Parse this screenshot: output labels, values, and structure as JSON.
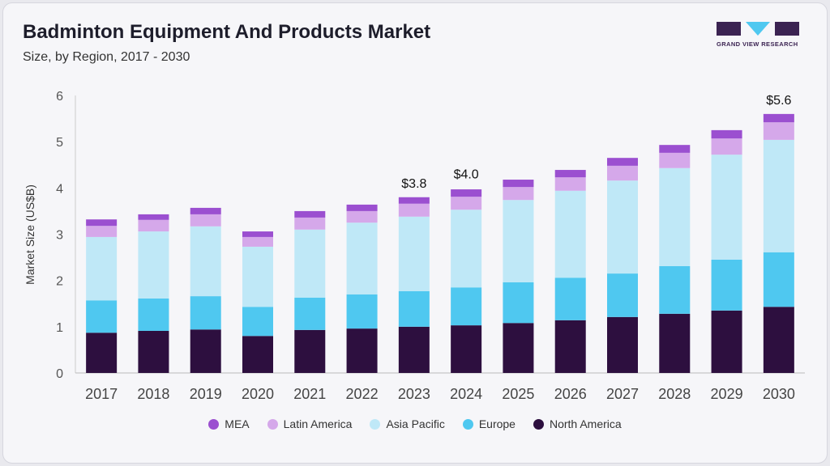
{
  "header": {
    "title": "Badminton Equipment And Products Market",
    "subtitle": "Size, by Region, 2017 - 2030",
    "logo_text": "GRAND VIEW RESEARCH"
  },
  "chart_data": {
    "type": "bar",
    "stacked": true,
    "title": "Badminton Equipment And Products Market",
    "subtitle": "Size, by Region, 2017 - 2030",
    "xlabel": "",
    "ylabel": "Market Size (US$B)",
    "ylim": [
      0,
      6
    ],
    "yticks": [
      "0",
      "1",
      "2",
      "3",
      "4",
      "5",
      "6"
    ],
    "grid": false,
    "legend_placement": "bottom",
    "categories": [
      "2017",
      "2018",
      "2019",
      "2020",
      "2021",
      "2022",
      "2023",
      "2024",
      "2025",
      "2026",
      "2027",
      "2028",
      "2029",
      "2030"
    ],
    "series": [
      {
        "name": "North America",
        "color": "#2d0f3f",
        "values": [
          0.87,
          0.91,
          0.94,
          0.8,
          0.93,
          0.96,
          1.0,
          1.03,
          1.08,
          1.14,
          1.21,
          1.28,
          1.35,
          1.43
        ]
      },
      {
        "name": "Europe",
        "color": "#4fc8f0",
        "values": [
          0.7,
          0.7,
          0.72,
          0.63,
          0.7,
          0.74,
          0.77,
          0.82,
          0.88,
          0.92,
          0.94,
          1.03,
          1.1,
          1.18
        ]
      },
      {
        "name": "Asia Pacific",
        "color": "#bfe8f7",
        "values": [
          1.37,
          1.45,
          1.51,
          1.3,
          1.47,
          1.55,
          1.61,
          1.68,
          1.78,
          1.88,
          2.01,
          2.12,
          2.27,
          2.43
        ]
      },
      {
        "name": "Latin America",
        "color": "#d5a8ea",
        "values": [
          0.24,
          0.25,
          0.26,
          0.21,
          0.26,
          0.25,
          0.28,
          0.28,
          0.28,
          0.29,
          0.32,
          0.33,
          0.35,
          0.38
        ]
      },
      {
        "name": "MEA",
        "color": "#9b4fd0",
        "values": [
          0.14,
          0.12,
          0.14,
          0.12,
          0.14,
          0.14,
          0.14,
          0.16,
          0.16,
          0.16,
          0.17,
          0.17,
          0.18,
          0.18
        ]
      }
    ],
    "legend_order": [
      "MEA",
      "Latin America",
      "Asia Pacific",
      "Europe",
      "North America"
    ],
    "annotations": [
      {
        "category": "2023",
        "label": "$3.8",
        "value": 3.8
      },
      {
        "category": "2024",
        "label": "$4.0",
        "value": 4.0
      },
      {
        "category": "2030",
        "label": "$5.6",
        "value": 5.6
      }
    ]
  }
}
